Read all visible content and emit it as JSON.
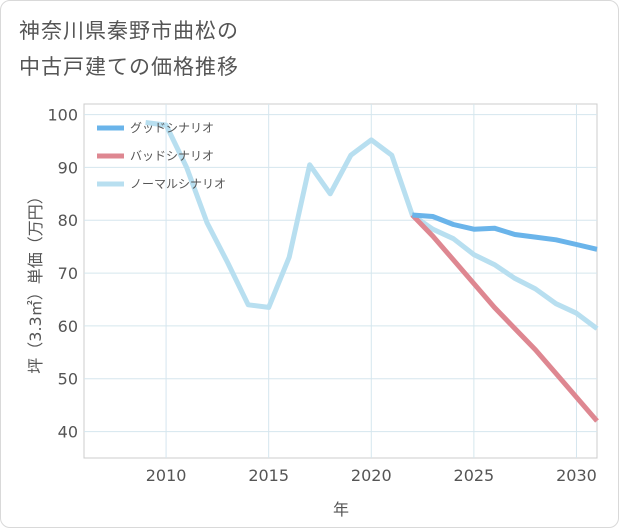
{
  "chart_data": {
    "type": "line",
    "title": "神奈川県秦野市曲松の中古戸建ての価格推移",
    "title_lines": [
      "神奈川県秦野市曲松の",
      "中古戸建ての価格推移"
    ],
    "xlabel": "年",
    "ylabel": "坪（3.3㎡）単価（万円）",
    "xlim": [
      2006,
      2031
    ],
    "ylim": [
      35,
      102
    ],
    "x_ticks": [
      2010,
      2015,
      2020,
      2025,
      2030
    ],
    "y_ticks": [
      40,
      50,
      60,
      70,
      80,
      90,
      100
    ],
    "grid": true,
    "legend_position": "top-left",
    "series": [
      {
        "name": "グッドシナリオ",
        "color": "#6ab4ea",
        "x": [
          2022,
          2023,
          2024,
          2025,
          2026,
          2027,
          2028,
          2029,
          2030,
          2031
        ],
        "values": [
          81,
          80.7,
          79.2,
          78.3,
          78.5,
          77.3,
          76.8,
          76.3,
          75.4,
          74.5
        ]
      },
      {
        "name": "バッドシナリオ",
        "color": "#de8791",
        "x": [
          2022,
          2023,
          2024,
          2025,
          2026,
          2027,
          2028,
          2029,
          2030,
          2031
        ],
        "values": [
          81,
          77,
          72.5,
          68,
          63.5,
          59.5,
          55.5,
          51,
          46.5,
          42
        ]
      },
      {
        "name": "ノーマルシナリオ",
        "color": "#b8dff0",
        "x": [
          2009,
          2010,
          2011,
          2012,
          2013,
          2014,
          2015,
          2016,
          2017,
          2018,
          2019,
          2020,
          2021,
          2022,
          2023,
          2024,
          2025,
          2026,
          2027,
          2028,
          2029,
          2030,
          2031
        ],
        "values": [
          98.5,
          98,
          90,
          79.5,
          72,
          64,
          63.5,
          73,
          90.5,
          85,
          92.3,
          95.2,
          92.3,
          81,
          78.3,
          76.5,
          73.5,
          71.6,
          69,
          67,
          64.2,
          62.4,
          59.5
        ]
      }
    ]
  }
}
